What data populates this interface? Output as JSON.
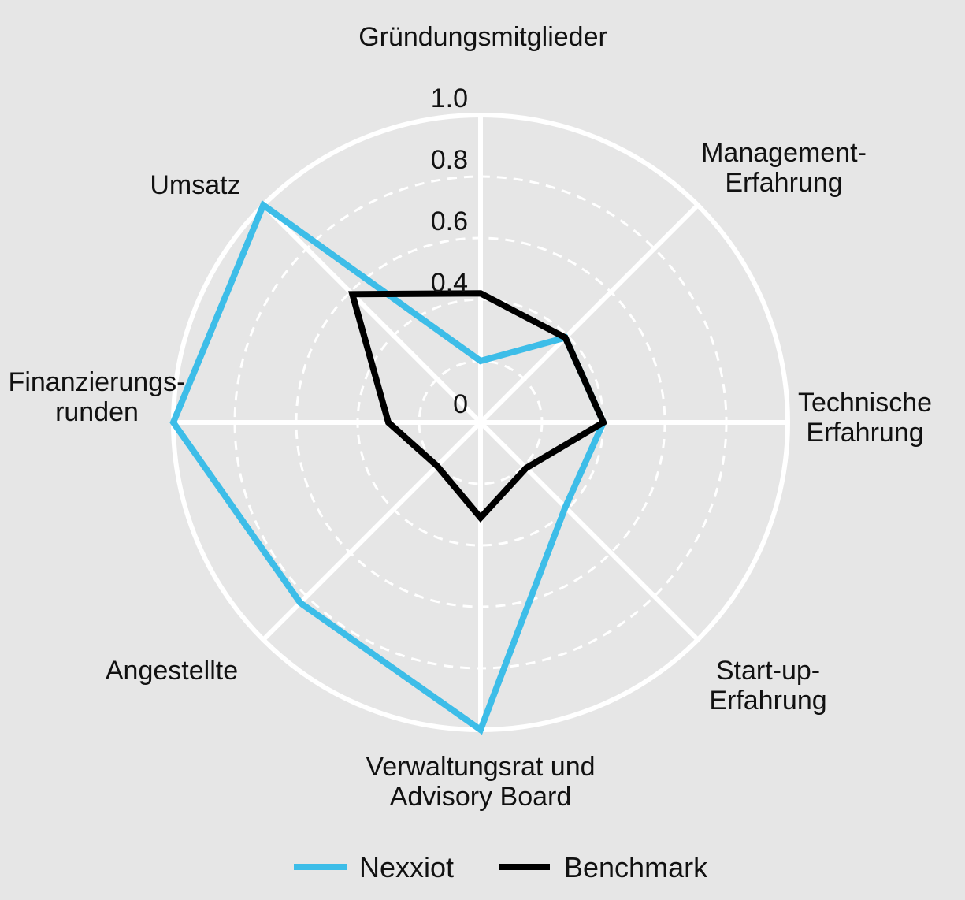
{
  "chart_data": {
    "type": "radar",
    "axes": [
      "Gründungsmitglieder",
      "Management-Erfahrung",
      "Technische Erfahrung",
      "Start-up-Erfahrung",
      "Verwaltungsrat und Advisory Board",
      "Angestellte",
      "Finanzierungsrunden",
      "Umsatz"
    ],
    "axis_label_lines": [
      [
        "Gründungsmitglieder"
      ],
      [
        "Management-",
        "Erfahrung"
      ],
      [
        "Technische",
        "Erfahrung"
      ],
      [
        "Start-up-",
        "Erfahrung"
      ],
      [
        "Verwaltungsrat und",
        "Advisory Board"
      ],
      [
        "Angestellte"
      ],
      [
        "Finanzierungs-",
        "runden"
      ],
      [
        "Umsatz"
      ]
    ],
    "radial_ticks": [
      "0",
      "0.4",
      "0.6",
      "0.8",
      "1.0"
    ],
    "radial_tick_values": [
      0,
      0.4,
      0.6,
      0.8,
      1.0
    ],
    "range": [
      0,
      1.0
    ],
    "series": [
      {
        "name": "Nexxiot",
        "color": "#3dbde8",
        "values": [
          0.2,
          0.39,
          0.4,
          0.39,
          1.0,
          0.83,
          1.0,
          1.0
        ]
      },
      {
        "name": "Benchmark",
        "color": "#000000",
        "values": [
          0.42,
          0.39,
          0.4,
          0.21,
          0.31,
          0.2,
          0.3,
          0.59
        ]
      }
    ],
    "legend": "bottom"
  }
}
